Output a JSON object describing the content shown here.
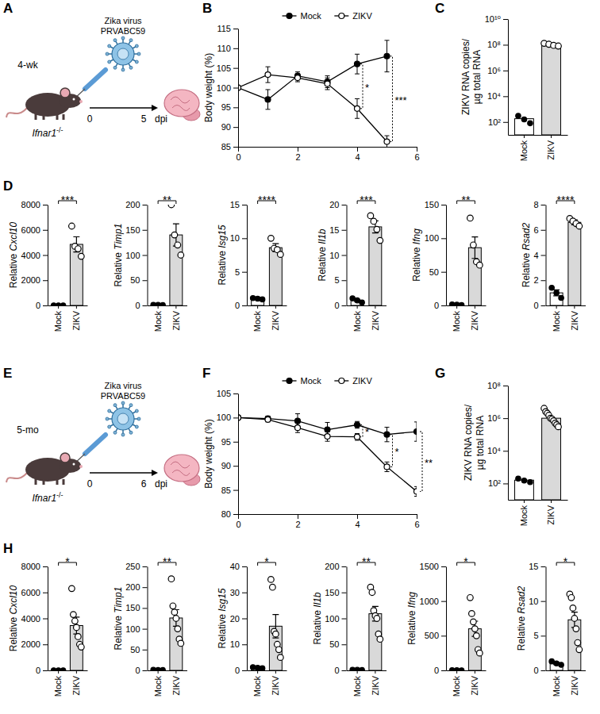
{
  "chart_data": [
    {
      "panel": "B",
      "type": "line",
      "ylabel": "Body weight (%)",
      "x": [
        0,
        1,
        2,
        3,
        4,
        5
      ],
      "xlim": [
        0,
        6
      ],
      "xticks": [
        0,
        2,
        4,
        6
      ],
      "ylim": [
        85,
        115
      ],
      "yticks": [
        85,
        90,
        95,
        100,
        105,
        110,
        115
      ],
      "legend": "top",
      "series": [
        {
          "name": "Mock",
          "color": "#000000",
          "marker": "filled-circle",
          "values": [
            100,
            97,
            103,
            101.5,
            106,
            108
          ],
          "errors": [
            0,
            2.5,
            1,
            1.5,
            2.5,
            4
          ]
        },
        {
          "name": "ZIKV",
          "color": "#000000",
          "marker": "open-circle",
          "values": [
            100,
            103.3,
            102.5,
            101,
            94.7,
            86.3
          ],
          "errors": [
            0,
            2,
            1,
            1.5,
            2.5,
            1.5
          ]
        }
      ],
      "annotations": [
        {
          "x": 4,
          "text": "*"
        },
        {
          "x": 5,
          "text": "***"
        }
      ]
    },
    {
      "panel": "C",
      "type": "bar",
      "log": "y",
      "ylabel": [
        "ZIKV RNA copies/",
        "µg total RNA"
      ],
      "categories": [
        "Mock",
        "ZIKV"
      ],
      "colors": [
        "#ffffff",
        "#d9d9d9"
      ],
      "values": [
        180,
        100000000
      ],
      "points": [
        [
          300,
          160,
          80
        ],
        [
          130000000,
          110000000,
          90000000,
          80000000
        ]
      ],
      "ylim": [
        10,
        10000000000
      ],
      "yticks": [
        {
          "value": 100,
          "label": "10²"
        },
        {
          "value": 10000,
          "label": "10⁴"
        },
        {
          "value": 1000000,
          "label": "10⁶"
        },
        {
          "value": 100000000,
          "label": "10⁸"
        },
        {
          "value": 10000000000,
          "label": "10¹⁰"
        }
      ]
    },
    {
      "panel": "D",
      "type": "bar",
      "ylabel": "Relative Cxcl10",
      "categories": [
        "Mock",
        "ZIKV"
      ],
      "colors": [
        "#ffffff",
        "#d9d9d9"
      ],
      "values": [
        1,
        4850
      ],
      "errors": [
        0.1,
        600
      ],
      "points": [
        [
          1.2,
          1,
          0.8
        ],
        [
          6300,
          4700,
          4500,
          3900
        ]
      ],
      "ylim": [
        0,
        8000
      ],
      "yticks": [
        0,
        2000,
        4000,
        6000,
        8000
      ],
      "annotations": [
        {
          "text": "***"
        }
      ]
    },
    {
      "type": "bar",
      "ylabel": "Relative Timp1",
      "categories": [
        "Mock",
        "ZIKV"
      ],
      "colors": [
        "#ffffff",
        "#d9d9d9"
      ],
      "values": [
        1,
        140
      ],
      "errors": [
        0.2,
        22
      ],
      "points": [
        [
          1.2,
          1,
          0.8
        ],
        [
          200,
          140,
          120,
          100
        ]
      ],
      "ylim": [
        0,
        200
      ],
      "yticks": [
        0,
        50,
        100,
        150,
        200
      ],
      "annotations": [
        {
          "text": "**"
        }
      ]
    },
    {
      "type": "bar",
      "ylabel": "Relative Isg15",
      "categories": [
        "Mock",
        "ZIKV"
      ],
      "colors": [
        "#ffffff",
        "#d9d9d9"
      ],
      "values": [
        1,
        8.6
      ],
      "errors": [
        0.06,
        0.6
      ],
      "points": [
        [
          1.1,
          1,
          0.9
        ],
        [
          10,
          8.5,
          8.3,
          7.6
        ]
      ],
      "ylim": [
        0,
        15
      ],
      "yticks": [
        0,
        5,
        10,
        15
      ],
      "annotations": [
        {
          "text": "****"
        }
      ]
    },
    {
      "type": "bar",
      "ylabel": "Relative Il1b",
      "categories": [
        "Mock",
        "ZIKV"
      ],
      "colors": [
        "#ffffff",
        "#d9d9d9"
      ],
      "values": [
        1,
        15.6
      ],
      "errors": [
        0.2,
        1.2
      ],
      "points": [
        [
          1.4,
          1,
          0.6
        ],
        [
          17.8,
          16.7,
          15.1,
          12.9
        ]
      ],
      "ylim": [
        0,
        20
      ],
      "yticks": [
        0,
        5,
        10,
        15,
        20
      ],
      "annotations": [
        {
          "text": "***"
        }
      ]
    },
    {
      "type": "bar",
      "ylabel": "Relative Ifng",
      "categories": [
        "Mock",
        "ZIKV"
      ],
      "colors": [
        "#ffffff",
        "#d9d9d9"
      ],
      "values": [
        1,
        86
      ],
      "errors": [
        0.3,
        16
      ],
      "points": [
        [
          1.4,
          1,
          0.6
        ],
        [
          130,
          90,
          65,
          60
        ]
      ],
      "ylim": [
        0,
        150
      ],
      "yticks": [
        0,
        50,
        100,
        150
      ],
      "annotations": [
        {
          "text": "**"
        }
      ]
    },
    {
      "type": "bar",
      "ylabel": "Relative Rsad2",
      "categories": [
        "Mock",
        "ZIKV"
      ],
      "colors": [
        "#ffffff",
        "#d9d9d9"
      ],
      "values": [
        1,
        6.6
      ],
      "errors": [
        0.23,
        0.2
      ],
      "points": [
        [
          1.4,
          1,
          0.6
        ],
        [
          6.9,
          6.7,
          6.5,
          6.3
        ]
      ],
      "ylim": [
        0,
        8
      ],
      "yticks": [
        0,
        2,
        4,
        6,
        8
      ],
      "annotations": [
        {
          "text": "****"
        }
      ]
    },
    {
      "panel": "F",
      "type": "line",
      "ylabel": "Body weight (%)",
      "x": [
        0,
        1,
        2,
        3,
        4,
        5,
        6
      ],
      "xlim": [
        0,
        6
      ],
      "xticks": [
        0,
        2,
        4,
        6
      ],
      "ylim": [
        80,
        105
      ],
      "yticks": [
        80,
        85,
        90,
        95,
        100,
        105
      ],
      "legend": "top",
      "series": [
        {
          "name": "Mock",
          "color": "#000000",
          "marker": "filled-circle",
          "values": [
            100,
            99.8,
            99.3,
            97.5,
            98.5,
            96.5,
            97.1
          ],
          "errors": [
            0,
            0.5,
            1.5,
            1.5,
            0.7,
            1.5,
            2
          ]
        },
        {
          "name": "ZIKV",
          "color": "#000000",
          "marker": "open-circle",
          "values": [
            100,
            99.6,
            97.9,
            96.1,
            96,
            89.8,
            84.7
          ],
          "errors": [
            0,
            0.5,
            1,
            1,
            0.7,
            1,
            1
          ]
        }
      ],
      "annotations": [
        {
          "x": 4,
          "text": "*"
        },
        {
          "x": 5,
          "text": "*"
        },
        {
          "x": 6,
          "text": "**"
        }
      ]
    },
    {
      "panel": "G",
      "type": "bar",
      "log": "y",
      "ylabel": [
        "ZIKV RNA copies/",
        "µg total RNA"
      ],
      "categories": [
        "Mock",
        "ZIKV"
      ],
      "colors": [
        "#ffffff",
        "#d9d9d9"
      ],
      "values": [
        160,
        1000000
      ],
      "points": [
        [
          200,
          150,
          120
        ],
        [
          4000000,
          2500000,
          2000000,
          1500000,
          1000000,
          900000,
          700000,
          500000,
          400000,
          300000
        ]
      ],
      "ylim": [
        10,
        100000000
      ],
      "yticks": [
        {
          "value": 100,
          "label": "10²"
        },
        {
          "value": 10000,
          "label": "10⁴"
        },
        {
          "value": 1000000,
          "label": "10⁶"
        },
        {
          "value": 100000000,
          "label": "10⁸"
        }
      ]
    },
    {
      "panel": "H",
      "type": "bar",
      "ylabel": "Relative Cxcl10",
      "categories": [
        "Mock",
        "ZIKV"
      ],
      "colors": [
        "#ffffff",
        "#d9d9d9"
      ],
      "values": [
        1,
        3450
      ],
      "errors": [
        0.1,
        650
      ],
      "points": [
        [
          1.2,
          1,
          0.8
        ],
        [
          6300,
          4300,
          3800,
          3300,
          2600,
          2000,
          1800
        ]
      ],
      "ylim": [
        0,
        8000
      ],
      "yticks": [
        0,
        2000,
        4000,
        6000,
        8000
      ],
      "annotations": [
        {
          "text": "*"
        }
      ]
    },
    {
      "type": "bar",
      "ylabel": "Relative Timp1",
      "categories": [
        "Mock",
        "ZIKV"
      ],
      "colors": [
        "#ffffff",
        "#d9d9d9"
      ],
      "values": [
        1,
        126
      ],
      "errors": [
        0.2,
        20
      ],
      "points": [
        [
          1.2,
          1,
          0.8
        ],
        [
          220,
          155,
          140,
          125,
          100,
          75,
          65
        ]
      ],
      "ylim": [
        0,
        250
      ],
      "yticks": [
        0,
        50,
        100,
        150,
        200,
        250
      ],
      "annotations": [
        {
          "text": "**"
        }
      ]
    },
    {
      "type": "bar",
      "ylabel": "Relative Isg15",
      "categories": [
        "Mock",
        "ZIKV"
      ],
      "colors": [
        "#ffffff",
        "#d9d9d9"
      ],
      "values": [
        1,
        17
      ],
      "errors": [
        0.1,
        4.5
      ],
      "points": [
        [
          1.2,
          1,
          0.8
        ],
        [
          35,
          32,
          15,
          14,
          10,
          8,
          5
        ]
      ],
      "ylim": [
        0,
        40
      ],
      "yticks": [
        0,
        10,
        20,
        30,
        40
      ],
      "annotations": [
        {
          "text": "*"
        }
      ]
    },
    {
      "type": "bar",
      "ylabel": "Relative Il1b",
      "categories": [
        "Mock",
        "ZIKV"
      ],
      "colors": [
        "#ffffff",
        "#d9d9d9"
      ],
      "values": [
        1,
        109
      ],
      "errors": [
        0.2,
        14
      ],
      "points": [
        [
          1.2,
          1,
          0.8
        ],
        [
          160,
          150,
          115,
          105,
          100,
          70,
          60
        ]
      ],
      "ylim": [
        0,
        200
      ],
      "yticks": [
        0,
        50,
        100,
        150,
        200
      ],
      "annotations": [
        {
          "text": "**"
        }
      ]
    },
    {
      "type": "bar",
      "ylabel": "Relative Ifng",
      "categories": [
        "Mock",
        "ZIKV"
      ],
      "colors": [
        "#ffffff",
        "#d9d9d9"
      ],
      "values": [
        1,
        600
      ],
      "errors": [
        0.2,
        110
      ],
      "points": [
        [
          1.2,
          1,
          0.8
        ],
        [
          1050,
          820,
          700,
          600,
          500,
          300,
          250
        ]
      ],
      "ylim": [
        0,
        1500
      ],
      "yticks": [
        0,
        500,
        1000,
        1500
      ],
      "annotations": [
        {
          "text": "*"
        }
      ]
    },
    {
      "type": "bar",
      "ylabel": "Relative Rsad2",
      "categories": [
        "Mock",
        "ZIKV"
      ],
      "colors": [
        "#ffffff",
        "#d9d9d9"
      ],
      "values": [
        1,
        7.3
      ],
      "errors": [
        0.15,
        1.1
      ],
      "points": [
        [
          1.3,
          1,
          0.8
        ],
        [
          11,
          10.5,
          9,
          7.5,
          6,
          4,
          3
        ]
      ],
      "ylim": [
        0,
        15
      ],
      "yticks": [
        0,
        5,
        10,
        15
      ],
      "annotations": [
        {
          "text": "*"
        }
      ]
    }
  ],
  "schematics": [
    {
      "panel": "A",
      "age": "4-wk",
      "virus": "Zika virus PRVABC59",
      "strain": "Ifnar1-/-",
      "start": 0,
      "end": 5,
      "unit": "dpi"
    },
    {
      "panel": "E",
      "age": "5-mo",
      "virus": "Zika virus PRVABC59",
      "strain": "Ifnar1-/-",
      "start": 0,
      "end": 6,
      "unit": "dpi"
    }
  ]
}
